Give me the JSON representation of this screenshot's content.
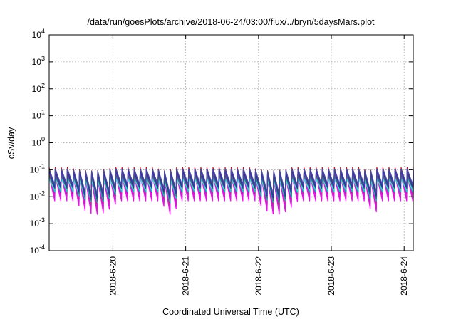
{
  "chart_data": {
    "type": "line",
    "title": "/data/run/goesPlots/archive/2018-06-24/03:00/flux/../bryn/5daysMars.plot",
    "xlabel": "Coordinated Universal Time (UTC)",
    "ylabel": "cSv/day",
    "yscale": "log",
    "ylim": [
      0.0001,
      10000
    ],
    "xlim": [
      "2018-06-19T03:00",
      "2018-06-24T03:00"
    ],
    "grid": true,
    "legend": "none",
    "x_ticks": [
      {
        "label": "2018-6-20",
        "value": "2018-06-20T00:00"
      },
      {
        "label": "2018-6-21",
        "value": "2018-06-21T00:00"
      },
      {
        "label": "2018-6-22",
        "value": "2018-06-22T00:00"
      },
      {
        "label": "2018-6-23",
        "value": "2018-06-23T00:00"
      },
      {
        "label": "2018-6-24",
        "value": "2018-06-24T00:00"
      }
    ],
    "y_ticks": [
      {
        "base": "10",
        "exp": "-4",
        "value": 0.0001
      },
      {
        "base": "10",
        "exp": "-3",
        "value": 0.001
      },
      {
        "base": "10",
        "exp": "-2",
        "value": 0.01
      },
      {
        "base": "10",
        "exp": "-1",
        "value": 0.1
      },
      {
        "base": "10",
        "exp": "0",
        "value": 1
      },
      {
        "base": "10",
        "exp": "1",
        "value": 10
      },
      {
        "base": "10",
        "exp": "2",
        "value": 100
      },
      {
        "base": "10",
        "exp": "3",
        "value": 1000
      },
      {
        "base": "10",
        "exp": "4",
        "value": 10000
      }
    ],
    "sawtooth": {
      "cycle_hours": 2.0,
      "first_peak": "2018-06-19T03:00",
      "dip_periods": [
        {
          "start": "2018-06-19T11:00",
          "end": "2018-06-20T02:00"
        },
        {
          "start": "2018-06-20T16:00",
          "end": "2018-06-20T22:00"
        },
        {
          "start": "2018-06-21T23:00",
          "end": "2018-06-22T13:00"
        },
        {
          "start": "2018-06-23T12:00",
          "end": "2018-06-23T16:00"
        }
      ]
    },
    "series": [
      {
        "color": "#e00000",
        "peak": 0.12,
        "trough": 0.02,
        "dip_trough": 0.005
      },
      {
        "color": "#8b1a6b",
        "peak": 0.1,
        "trough": 0.012,
        "dip_trough": 0.003
      },
      {
        "color": "#ff00ff",
        "peak": 0.06,
        "trough": 0.007,
        "dip_trough": 0.0022
      },
      {
        "color": "#d020d0",
        "peak": 0.075,
        "trough": 0.009,
        "dip_trough": 0.0028
      },
      {
        "color": "#00c8c8",
        "peak": 0.05,
        "trough": 0.015,
        "dip_trough": 0.006
      },
      {
        "color": "#40e0d0",
        "peak": 0.045,
        "trough": 0.018,
        "dip_trough": 0.008
      },
      {
        "color": "#2f6f6f",
        "peak": 0.065,
        "trough": 0.02,
        "dip_trough": 0.007
      },
      {
        "color": "#0050ff",
        "peak": 0.1,
        "trough": 0.025,
        "dip_trough": 0.01
      },
      {
        "color": "#3030b0",
        "peak": 0.09,
        "trough": 0.022,
        "dip_trough": 0.009
      },
      {
        "color": "#4a4a9a",
        "peak": 0.11,
        "trough": 0.028,
        "dip_trough": 0.012
      }
    ]
  }
}
